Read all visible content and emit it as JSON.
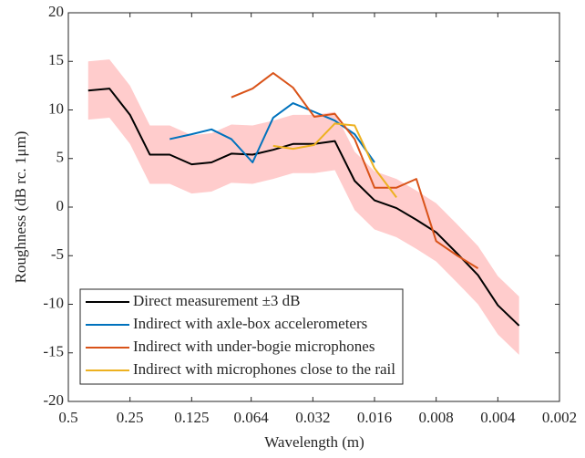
{
  "chart_data": {
    "type": "line",
    "xlabel": "Wavelength (m)",
    "ylabel": "Roughness (dB rc. 1μm)",
    "xscale": "log",
    "xreversed": true,
    "xlim": [
      0.5,
      0.002
    ],
    "xticks": [
      0.5,
      0.25,
      0.125,
      0.064,
      0.032,
      0.016,
      0.008,
      0.004,
      0.002
    ],
    "ylim": [
      -20,
      20
    ],
    "yticks": [
      -20,
      -15,
      -10,
      -5,
      0,
      5,
      10,
      15,
      20
    ],
    "legend": "bottom-left",
    "series": [
      {
        "name": "Direct measurement ±3 dB",
        "color": "#000000",
        "band_color": "#ffcccc",
        "x": [
          0.4,
          0.315,
          0.25,
          0.2,
          0.16,
          0.125,
          0.1,
          0.08,
          0.063,
          0.05,
          0.04,
          0.0315,
          0.025,
          0.02,
          0.016,
          0.0125,
          0.01,
          0.008,
          0.0063,
          0.005,
          0.004,
          0.00315
        ],
        "values": [
          12,
          12.2,
          9.5,
          5.4,
          5.4,
          4.4,
          4.6,
          5.5,
          5.4,
          5.9,
          6.5,
          6.5,
          6.8,
          2.7,
          0.7,
          -0.1,
          -1.3,
          -2.6,
          -4.8,
          -7,
          -10.1,
          -12.2
        ],
        "upper": [
          15,
          15.2,
          12.5,
          8.4,
          8.4,
          7.4,
          7.6,
          8.5,
          8.4,
          8.9,
          9.5,
          9.5,
          9.8,
          5.7,
          3.7,
          2.9,
          1.7,
          0.4,
          -1.8,
          -4,
          -7.1,
          -9.2
        ],
        "lower": [
          9,
          9.2,
          6.5,
          2.4,
          2.4,
          1.4,
          1.6,
          2.5,
          2.4,
          2.9,
          3.5,
          3.5,
          3.8,
          -0.3,
          -2.3,
          -3.1,
          -4.3,
          -5.6,
          -7.8,
          -10,
          -13.1,
          -15.2
        ]
      },
      {
        "name": "Indirect with axle-box accelerometers",
        "color": "#0072BD",
        "x": [
          0.16,
          0.125,
          0.1,
          0.08,
          0.063,
          0.05,
          0.04,
          0.0315,
          0.025,
          0.02,
          0.016
        ],
        "values": [
          7.0,
          7.5,
          8.0,
          7.0,
          4.6,
          9.2,
          10.7,
          9.8,
          8.9,
          7.5,
          4.6
        ]
      },
      {
        "name": "Indirect with under-bogie microphones",
        "color": "#D95319",
        "x": [
          0.08,
          0.063,
          0.05,
          0.04,
          0.0315,
          0.025,
          0.02,
          0.016,
          0.0125,
          0.01,
          0.008,
          0.0063,
          0.005
        ],
        "values": [
          11.3,
          12.2,
          13.8,
          12.3,
          9.3,
          9.6,
          7.0,
          2.0,
          2.0,
          2.9,
          -3.5,
          -5.0,
          -6.3
        ]
      },
      {
        "name": "Indirect with microphones close to the rail",
        "color": "#EDB120",
        "x": [
          0.05,
          0.04,
          0.0315,
          0.025,
          0.02,
          0.016,
          0.0125
        ],
        "values": [
          6.3,
          6.0,
          6.4,
          8.6,
          8.4,
          4.0,
          1.0
        ]
      }
    ]
  }
}
